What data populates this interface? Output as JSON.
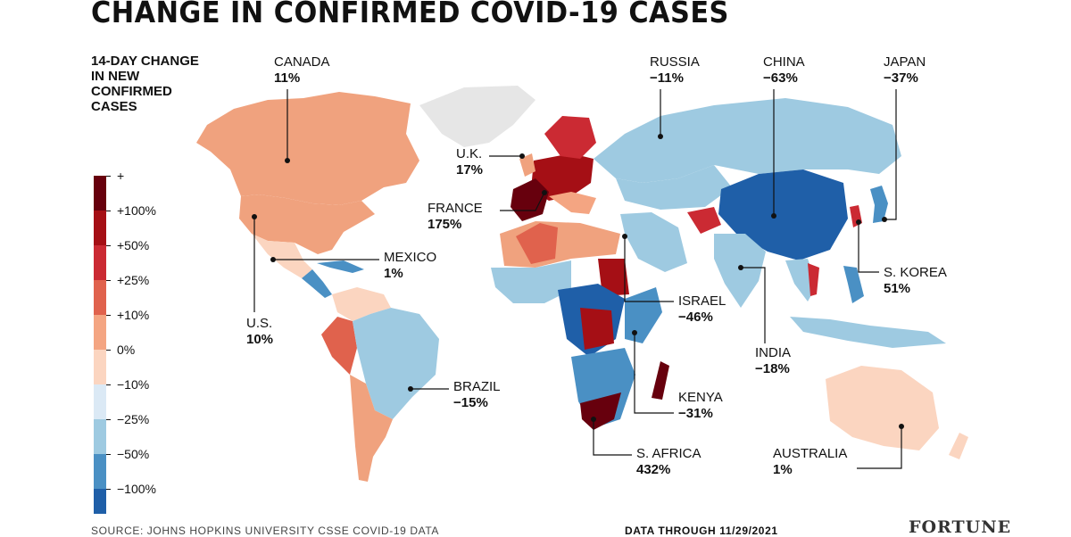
{
  "title": "CHANGE IN CONFIRMED COVID-19 CASES",
  "legend": {
    "title_lines": [
      "14-DAY CHANGE",
      "IN NEW",
      "CONFIRMED",
      "CASES"
    ],
    "items": [
      {
        "label": "+",
        "color": "#67000d"
      },
      {
        "label": "+100%",
        "color": "#a50f15"
      },
      {
        "label": "+50%",
        "color": "#cb2a33"
      },
      {
        "label": "+25%",
        "color": "#e0624d"
      },
      {
        "label": "+10%",
        "color": "#f4a582"
      },
      {
        "label": "0%",
        "color": "#fbd5c0"
      },
      {
        "label": "−10%",
        "color": "#dbe9f5"
      },
      {
        "label": "−25%",
        "color": "#9ecae1"
      },
      {
        "label": "−50%",
        "color": "#4a90c4"
      },
      {
        "label": "−100%",
        "color": "#1f5fa8"
      }
    ]
  },
  "colors": {
    "no_data": "#e6e6e6",
    "leader_line": "#111111"
  },
  "countries": [
    {
      "id": "canada",
      "name": "CANADA",
      "value": "11%"
    },
    {
      "id": "us",
      "name": "U.S.",
      "value": "10%"
    },
    {
      "id": "mexico",
      "name": "MEXICO",
      "value": "1%"
    },
    {
      "id": "brazil",
      "name": "BRAZIL",
      "value": "−15%"
    },
    {
      "id": "uk",
      "name": "U.K.",
      "value": "17%"
    },
    {
      "id": "france",
      "name": "FRANCE",
      "value": "175%"
    },
    {
      "id": "russia",
      "name": "RUSSIA",
      "value": "−11%"
    },
    {
      "id": "china",
      "name": "CHINA",
      "value": "−63%"
    },
    {
      "id": "japan",
      "name": "JAPAN",
      "value": "−37%"
    },
    {
      "id": "skorea",
      "name": "S. KOREA",
      "value": "51%"
    },
    {
      "id": "israel",
      "name": "ISRAEL",
      "value": "−46%"
    },
    {
      "id": "india",
      "name": "INDIA",
      "value": "−18%"
    },
    {
      "id": "kenya",
      "name": "KENYA",
      "value": "−31%"
    },
    {
      "id": "safrica",
      "name": "S. AFRICA",
      "value": "432%"
    },
    {
      "id": "australia",
      "name": "AUSTRALIA",
      "value": "1%"
    }
  ],
  "footer": {
    "source": "SOURCE: JOHNS HOPKINS UNIVERSITY CSSE COVID-19 DATA",
    "date": "DATA THROUGH 11/29/2021",
    "brand": "FORTUNE"
  }
}
